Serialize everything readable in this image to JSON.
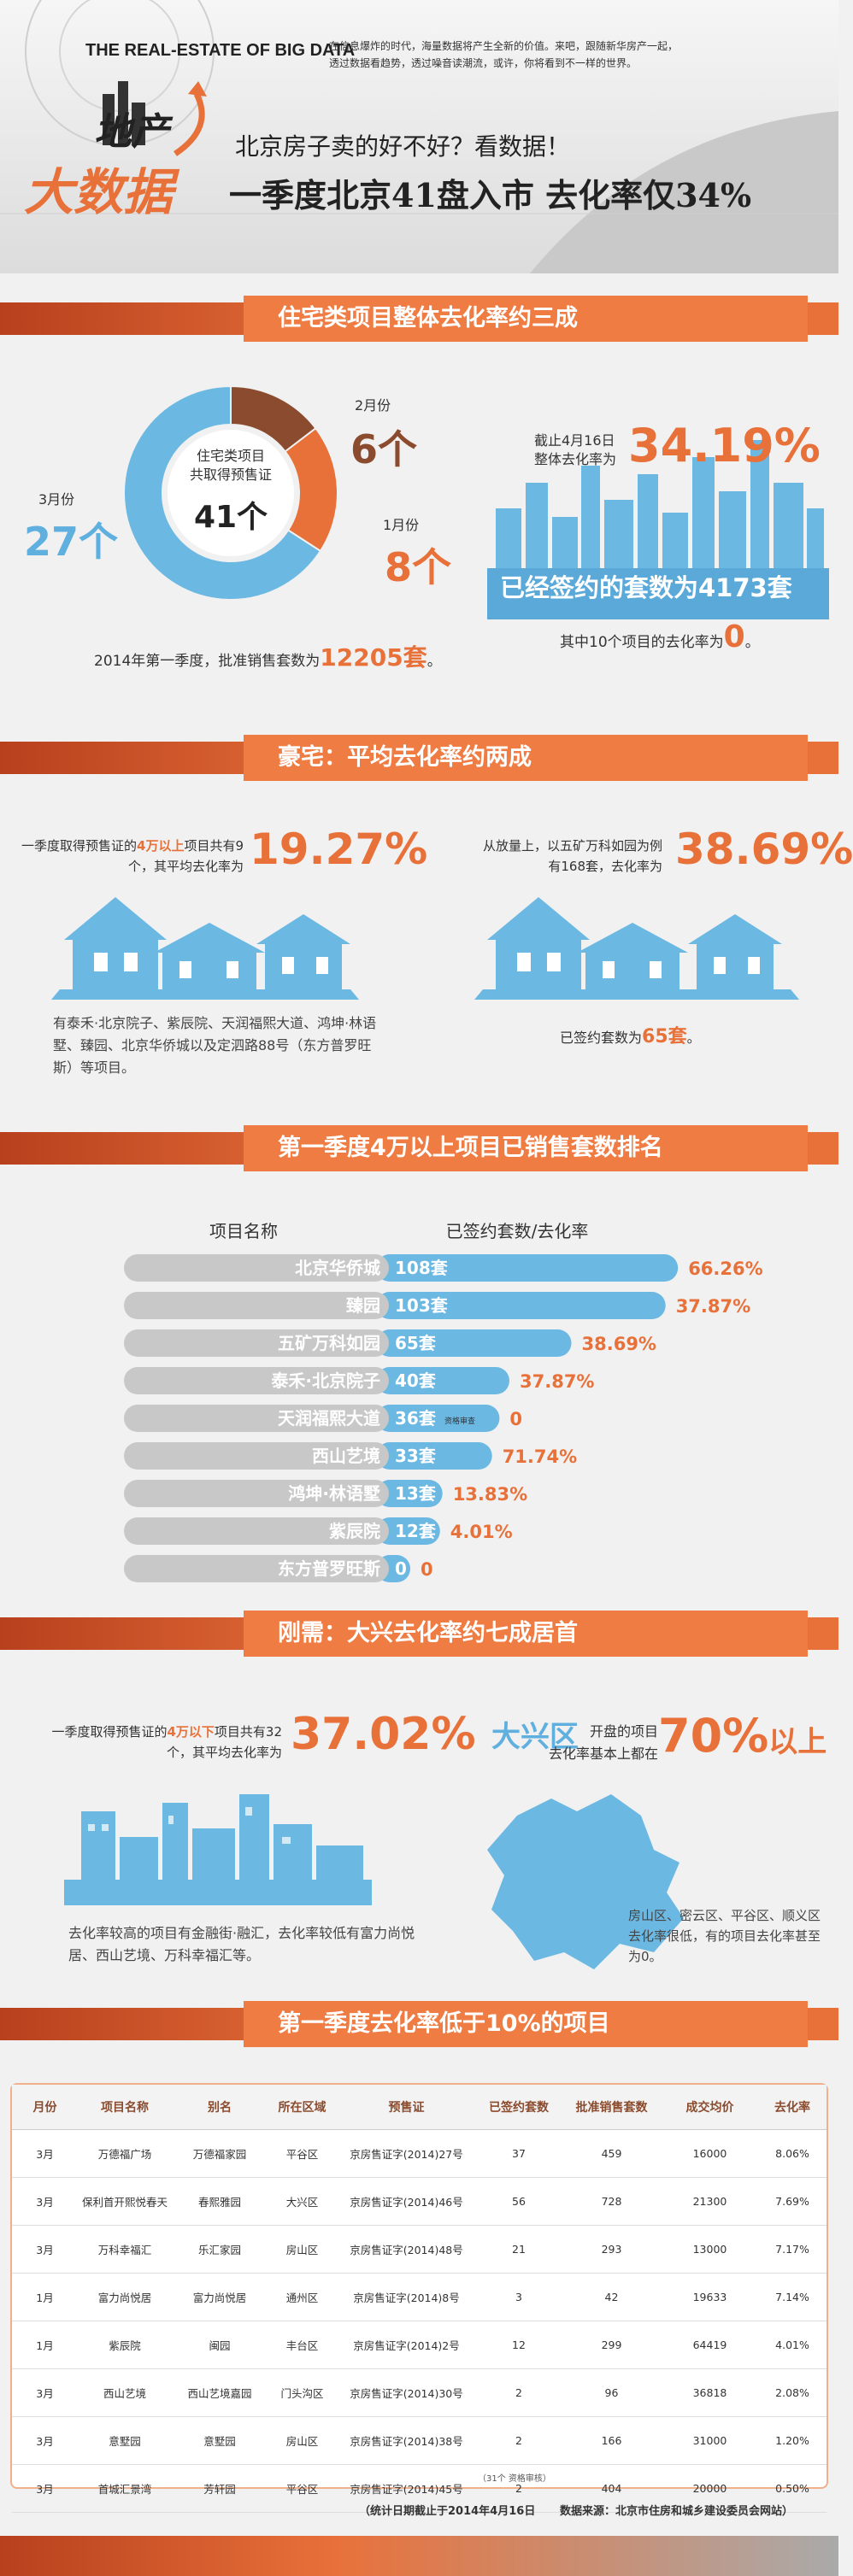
{
  "header": {
    "brand": "THE  REAL-ESTATE OF BIG DATA",
    "intro": "在信息爆炸的时代，海量数据将产生全新的价值。来吧，跟随新华房产一起，透过数据看趋势，透过噪音读潮流，或许，你将看到不一样的世界。",
    "logo_top": "地产",
    "logo_bottom": "大数据",
    "kicker": "北京房子卖的好不好？看数据！",
    "headline": "一季度北京41盘入市  去化率仅34%"
  },
  "section1": {
    "title": "住宅类项目整体去化率约三成",
    "donut": {
      "type": "pie",
      "categories": [
        "2月份",
        "1月份",
        "3月份"
      ],
      "values": [
        6,
        8,
        27
      ],
      "value_labels": [
        "6个",
        "8个",
        "27个"
      ],
      "colors": [
        "#8a4b2e",
        "#e8713a",
        "#6bb8e3"
      ],
      "center_lines": [
        "住宅类项目",
        "共取得预售证"
      ],
      "center_value": "41个"
    },
    "approved_text": "2014年第一季度，批准销售套数为",
    "approved_value": "12205套",
    "approved_end": "。",
    "rate_caption": [
      "截止4月16日",
      "整体去化率为"
    ],
    "rate": "34.19%",
    "signed": "已经签约的套数为4173套",
    "zero_text": "其中10个项目的去化率为",
    "zero_value": "0",
    "zero_end": "。"
  },
  "section2": {
    "title": "豪宅：平均去化率约两成",
    "left_text_a": "一季度取得预售证的",
    "left_highlight": "4万以上",
    "left_text_b": "项目共有9个，其平均去化率为",
    "left_rate": "19.27%",
    "left_note": "有泰禾·北京院子、紫辰院、天润福熙大道、鸿坤·林语墅、臻园、北京华侨城以及定泗路88号（东方普罗旺斯）等项目。",
    "right_lines": [
      "从放量上，以五矿万科如园为例",
      "有168套，去化率为"
    ],
    "right_rate": "38.69%",
    "right_note": "已签约套数为",
    "right_value": "65套",
    "right_end": "。"
  },
  "section3": {
    "title": "第一季度4万以上项目已销售套数排名",
    "col_name": "项目名称",
    "col_value": "已签约套数/去化率",
    "chart": {
      "type": "bar",
      "categories": [
        "北京华侨城",
        "臻园",
        "五矿万科如园",
        "泰禾·北京院子",
        "天润福熙大道",
        "西山艺境",
        "鸿坤·林语墅",
        "紫辰院",
        "东方普罗旺斯"
      ],
      "values": [
        108,
        103,
        65,
        40,
        36,
        33,
        13,
        12,
        0
      ],
      "value_labels": [
        "108套",
        "103套",
        "65套",
        "40套",
        "36套",
        "33套",
        "13套",
        "12套",
        "0"
      ],
      "rates": [
        66.26,
        37.87,
        38.69,
        37.87,
        0,
        71.74,
        13.83,
        4.01,
        0
      ],
      "rate_labels": [
        "66.26%",
        "37.87%",
        "38.69%",
        "37.87%",
        "0",
        "71.74%",
        "13.83%",
        "4.01%",
        "0"
      ],
      "bar_color": "#6bb8e3",
      "name_color": "#c8c8c8",
      "rate_color": "#e8713a",
      "note": "资格审查"
    }
  },
  "section4": {
    "title": "刚需：大兴去化率约七成居首",
    "left_text_a": "一季度取得预售证的",
    "left_highlight": "4万以下",
    "left_text_b": "项目共有32个，其平均去化率为",
    "left_rate": "37.02%",
    "left_note": "去化率较高的项目有金融街·融汇，去化率较低有富力尚悦居、西山艺境、万科幸福汇等。",
    "right_district": "大兴区",
    "right_text_a": "开盘的项目",
    "right_text_b": "去化率基本上都在",
    "right_rate": "70%",
    "right_end": "以上",
    "right_note": "房山区、密云区、平谷区、顺义区去化率很低，有的项目去化率甚至为0。"
  },
  "section5": {
    "title": "第一季度去化率低于10%的项目",
    "table": {
      "columns": [
        "月份",
        "项目名称",
        "别名",
        "所在区域",
        "预售证",
        "已签约套数",
        "批准销售套数",
        "成交均价",
        "去化率"
      ],
      "rows": [
        [
          "3月",
          "万德福广场",
          "万德福家园",
          "平谷区",
          "京房售证字(2014)27号",
          "37",
          "459",
          "16000",
          "8.06%"
        ],
        [
          "3月",
          "保利首开熙悦春天",
          "春熙雅园",
          "大兴区",
          "京房售证字(2014)46号",
          "56",
          "728",
          "21300",
          "7.69%"
        ],
        [
          "3月",
          "万科幸福汇",
          "乐汇家园",
          "房山区",
          "京房售证字(2014)48号",
          "21",
          "293",
          "13000",
          "7.17%"
        ],
        [
          "1月",
          "富力尚悦居",
          "富力尚悦居",
          "通州区",
          "京房售证字(2014)8号",
          "3",
          "42",
          "19633",
          "7.14%"
        ],
        [
          "1月",
          "紫辰院",
          "闽园",
          "丰台区",
          "京房售证字(2014)2号",
          "12",
          "299",
          "64419",
          "4.01%"
        ],
        [
          "3月",
          "西山艺境",
          "西山艺境嘉园",
          "门头沟区",
          "京房售证字(2014)30号",
          "2",
          "96",
          "36818",
          "2.08%"
        ],
        [
          "3月",
          "意墅园",
          "意墅园",
          "房山区",
          "京房售证字(2014)38号",
          "2",
          "166",
          "31000",
          "1.20%"
        ],
        [
          "3月",
          "首城汇景湾",
          "芳轩园",
          "平谷区",
          "京房售证字(2014)45号",
          "2",
          "404",
          "20000",
          "0.50%"
        ]
      ],
      "footnote": "（31个  资格审核）"
    },
    "footer_date": "（统计日期截止于2014年4月16日",
    "footer_source": "数据来源：北京市住房和城乡建设委员会网站）"
  }
}
